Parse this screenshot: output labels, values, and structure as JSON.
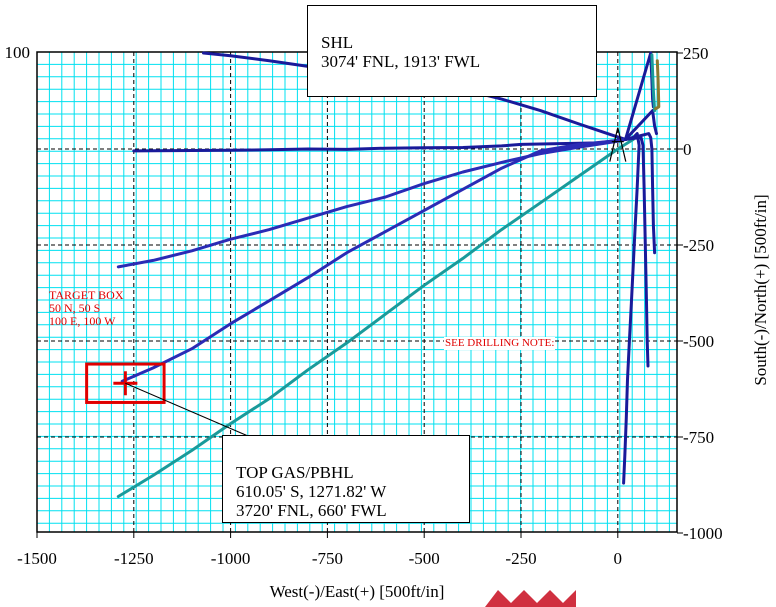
{
  "chart_data": {
    "type": "line",
    "xlabel": "West(-)/East(+) [500ft/in]",
    "ylabel": "South(-)/North(+) [500ft/in]",
    "xlim": [
      -1500,
      150
    ],
    "ylim": [
      -1000,
      250
    ],
    "xticks": [
      -1500,
      -1250,
      -1000,
      -750,
      -500,
      -250,
      0
    ],
    "xtick_labels": [
      "-1500",
      "-1250",
      "-1000",
      "-750",
      "-500",
      "-250",
      "0"
    ],
    "yticks": [
      250,
      0,
      -250,
      -500,
      -750,
      -1000
    ],
    "ytick_labels": [
      "250",
      "0",
      "-250",
      "-500",
      "-750",
      "-1000"
    ],
    "top_left_label": "100",
    "grid": true,
    "series": [
      {
        "color": "#1a1a9a",
        "points": [
          [
            -1070,
            250
          ],
          [
            -1000,
            243
          ],
          [
            -900,
            230
          ],
          [
            -800,
            215
          ],
          [
            -700,
            202
          ],
          [
            -600,
            190
          ],
          [
            -500,
            172
          ],
          [
            -400,
            155
          ],
          [
            -300,
            130
          ],
          [
            -200,
            100
          ],
          [
            -100,
            65
          ],
          [
            -20,
            38
          ],
          [
            20,
            25
          ]
        ]
      },
      {
        "color": "#1a1a9a",
        "points": [
          [
            -1250,
            -5
          ],
          [
            -1100,
            -4
          ],
          [
            -1000,
            -3
          ],
          [
            -900,
            -2
          ],
          [
            -800,
            0
          ],
          [
            -700,
            -1
          ],
          [
            -600,
            2
          ],
          [
            -500,
            3
          ],
          [
            -400,
            4
          ],
          [
            -300,
            8
          ],
          [
            -250,
            12
          ],
          [
            -150,
            14
          ],
          [
            -50,
            16
          ],
          [
            20,
            25
          ]
        ]
      },
      {
        "color": "#2b2bb5",
        "points": [
          [
            -1290,
            -307
          ],
          [
            -1200,
            -290
          ],
          [
            -1100,
            -265
          ],
          [
            -1000,
            -235
          ],
          [
            -900,
            -210
          ],
          [
            -800,
            -180
          ],
          [
            -700,
            -150
          ],
          [
            -600,
            -125
          ],
          [
            -500,
            -90
          ],
          [
            -400,
            -60
          ],
          [
            -300,
            -35
          ],
          [
            -200,
            -12
          ],
          [
            -100,
            5
          ],
          [
            0,
            20
          ],
          [
            20,
            25
          ]
        ]
      },
      {
        "color": "#2b2bb5",
        "points": [
          [
            -1280,
            -605
          ],
          [
            -1200,
            -570
          ],
          [
            -1100,
            -520
          ],
          [
            -1000,
            -455
          ],
          [
            -900,
            -395
          ],
          [
            -800,
            -335
          ],
          [
            -700,
            -270
          ],
          [
            -600,
            -215
          ],
          [
            -500,
            -160
          ],
          [
            -400,
            -105
          ],
          [
            -300,
            -50
          ],
          [
            -200,
            -5
          ],
          [
            -100,
            12
          ],
          [
            0,
            22
          ],
          [
            20,
            25
          ]
        ]
      },
      {
        "color": "#1a9a9a",
        "points": [
          [
            -1290,
            -905
          ],
          [
            -1200,
            -850
          ],
          [
            -1100,
            -785
          ],
          [
            -1000,
            -715
          ],
          [
            -900,
            -650
          ],
          [
            -800,
            -575
          ],
          [
            -700,
            -505
          ],
          [
            -600,
            -430
          ],
          [
            -500,
            -355
          ],
          [
            -400,
            -285
          ],
          [
            -300,
            -210
          ],
          [
            -200,
            -140
          ],
          [
            -100,
            -70
          ],
          [
            0,
            0
          ],
          [
            40,
            25
          ]
        ]
      },
      {
        "color": "#1a1a9a",
        "points": [
          [
            20,
            25
          ],
          [
            40,
            30
          ],
          [
            50,
            40
          ],
          [
            55,
            10
          ],
          [
            50,
            -100
          ],
          [
            45,
            -200
          ],
          [
            40,
            -300
          ],
          [
            35,
            -400
          ],
          [
            30,
            -500
          ],
          [
            25,
            -600
          ],
          [
            22,
            -700
          ],
          [
            18,
            -800
          ],
          [
            15,
            -870
          ]
        ]
      },
      {
        "color": "#1a1a9a",
        "points": [
          [
            20,
            25
          ],
          [
            60,
            30
          ],
          [
            65,
            10
          ],
          [
            68,
            -100
          ],
          [
            70,
            -200
          ],
          [
            72,
            -300
          ],
          [
            74,
            -400
          ],
          [
            76,
            -500
          ],
          [
            78,
            -565
          ]
        ]
      },
      {
        "color": "#1a1a9a",
        "points": [
          [
            20,
            25
          ],
          [
            80,
            40
          ],
          [
            85,
            30
          ],
          [
            88,
            0
          ],
          [
            90,
            -100
          ],
          [
            92,
            -200
          ],
          [
            95,
            -270
          ]
        ]
      },
      {
        "color": "#1a1a9a",
        "points": [
          [
            20,
            25
          ],
          [
            90,
            100
          ],
          [
            95,
            60
          ],
          [
            100,
            40
          ]
        ]
      },
      {
        "color": "#1a1a9a",
        "points": [
          [
            20,
            25
          ],
          [
            85,
            250
          ],
          [
            88,
            180
          ],
          [
            90,
            130
          ],
          [
            92,
            110
          ]
        ]
      },
      {
        "color": "#1a9a9a",
        "points": [
          [
            88,
            245
          ],
          [
            90,
            200
          ],
          [
            92,
            150
          ],
          [
            95,
            100
          ]
        ]
      },
      {
        "color": "#8a7a30",
        "points": [
          [
            102,
            230
          ],
          [
            104,
            180
          ],
          [
            105,
            140
          ],
          [
            106,
            110
          ],
          [
            98,
            105
          ]
        ]
      }
    ],
    "target_box": {
      "x_min": -1371.82,
      "x_max": -1171.82,
      "y_min": -660.05,
      "y_max": -560.05,
      "color": "#e00000"
    },
    "target_point": [
      -1271.82,
      -610.05
    ],
    "annotations": [
      {
        "id": "shl",
        "lines": [
          "SHL",
          "3074' FNL, 1913' FWL"
        ]
      },
      {
        "id": "pbhl",
        "lines": [
          "TOP GAS/PBHL",
          "610.05' S, 1271.82' W",
          "3720' FNL, 660' FWL"
        ]
      }
    ],
    "red_notes": {
      "target": [
        "TARGET BOX",
        "50 N, 50 S",
        "100 E, 100 W"
      ],
      "drilling": "SEE DRILLING NOTE:"
    }
  }
}
